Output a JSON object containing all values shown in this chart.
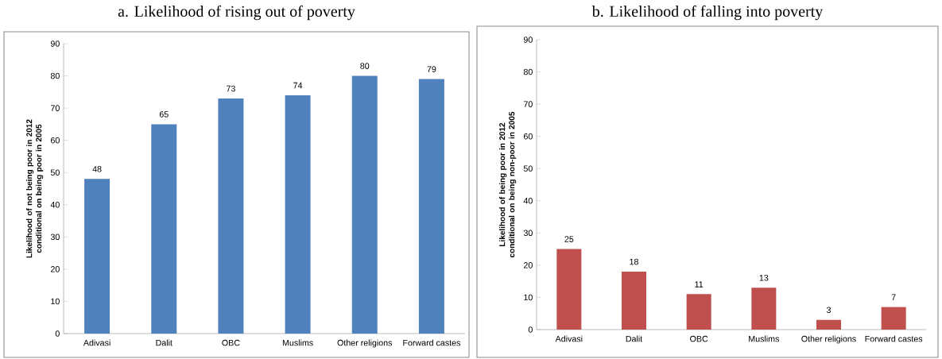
{
  "chart_data": [
    {
      "type": "bar",
      "title": "a.   Likelihood of rising out of poverty",
      "ylabel": "Likelihood of not being poor in 2012 conditional on being poor in 2005",
      "categories": [
        "Adivasi",
        "Dalit",
        "OBC",
        "Muslims",
        "Other religions",
        "Forward castes"
      ],
      "values": [
        48,
        65,
        73,
        74,
        80,
        79
      ],
      "color": "#4f81bd",
      "ylim": [
        0,
        90
      ],
      "yticks": [
        0,
        10,
        20,
        30,
        40,
        50,
        60,
        70,
        80,
        90
      ],
      "data_labels": true
    },
    {
      "type": "bar",
      "title": "b.  Likelihood of falling into poverty",
      "ylabel": "Likelihood of being poor in 2012 conditional on being non-poor in 2005",
      "categories": [
        "Adivasi",
        "Dalit",
        "OBC",
        "Muslims",
        "Other religions",
        "Forward castes"
      ],
      "values": [
        25,
        18,
        11,
        13,
        3,
        7
      ],
      "color": "#c0504d",
      "ylim": [
        0,
        90
      ],
      "yticks": [
        0,
        10,
        20,
        30,
        40,
        50,
        60,
        70,
        80,
        90
      ],
      "data_labels": true
    }
  ]
}
